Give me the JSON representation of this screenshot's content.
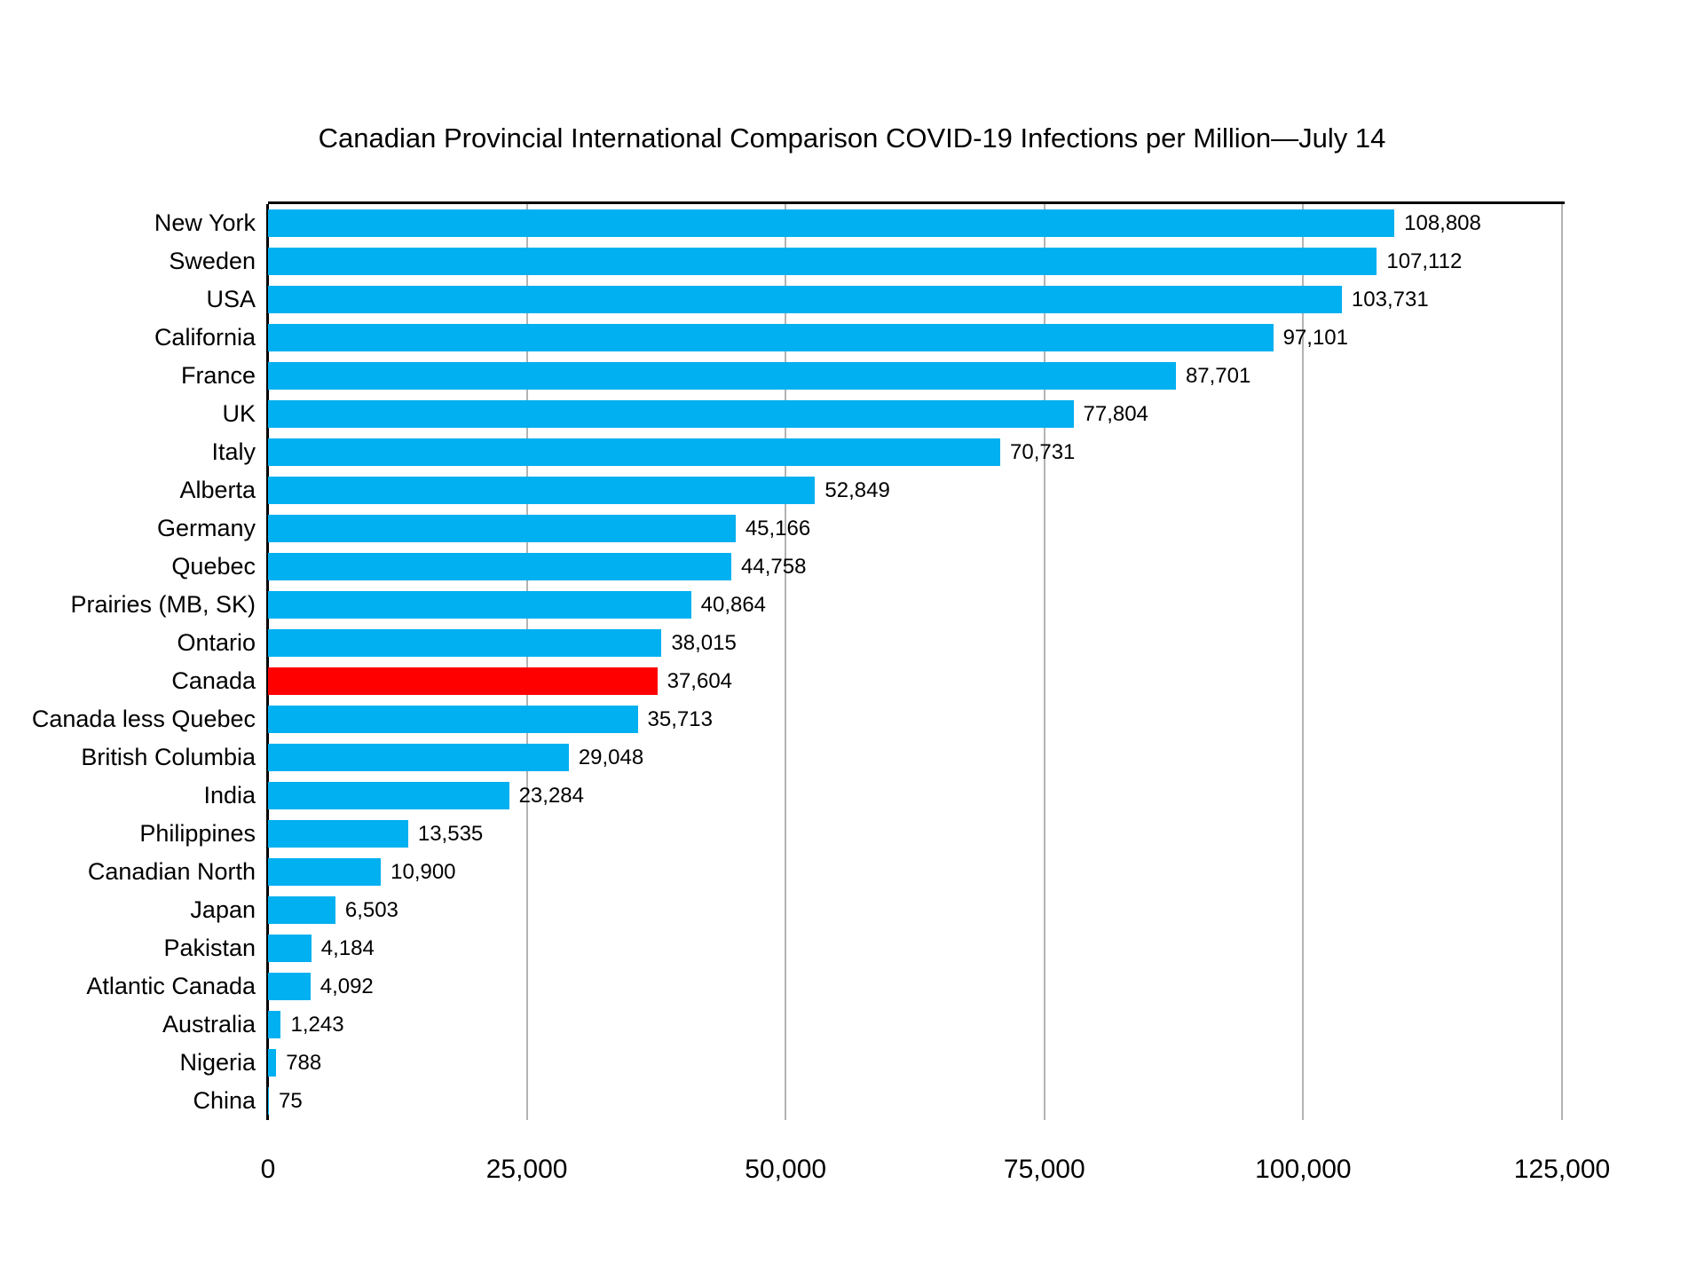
{
  "title": "Canadian Provincial International Comparison COVID-19 Infections per Million—July 14",
  "colors": {
    "bar": "#00b0f0",
    "highlight_bar": "#ff0000",
    "gridline": "#b3b3b3",
    "axis": "#000000",
    "text": "#000000",
    "background": "#ffffff"
  },
  "chart_data": {
    "type": "bar",
    "orientation": "horizontal",
    "title": "Canadian Provincial International Comparison COVID-19 Infections per Million—July 14",
    "xlabel": "",
    "ylabel": "",
    "xlim": [
      0,
      125000
    ],
    "grid": true,
    "legend": false,
    "highlight_category": "Canada",
    "categories": [
      "New York",
      "Sweden",
      "USA",
      "California",
      "France",
      "UK",
      "Italy",
      "Alberta",
      "Germany",
      "Quebec",
      "Prairies (MB, SK)",
      "Ontario",
      "Canada",
      "Canada less Quebec",
      "British Columbia",
      "India",
      "Philippines",
      "Canadian North",
      "Japan",
      "Pakistan",
      "Atlantic Canada",
      "Australia",
      "Nigeria",
      "China"
    ],
    "values": [
      108808,
      107112,
      103731,
      97101,
      87701,
      77804,
      70731,
      52849,
      45166,
      44758,
      40864,
      38015,
      37604,
      35713,
      29048,
      23284,
      13535,
      10900,
      6503,
      4184,
      4092,
      1243,
      788,
      75
    ],
    "value_labels": [
      "108,808",
      "107,112",
      "103,731",
      "97,101",
      "87,701",
      "77,804",
      "70,731",
      "52,849",
      "45,166",
      "44,758",
      "40,864",
      "38,015",
      "37,604",
      "35,713",
      "29,048",
      "23,284",
      "13,535",
      "10,900",
      "6,503",
      "4,184",
      "4,092",
      "1,243",
      "788",
      "75"
    ],
    "x_ticks": [
      0,
      25000,
      50000,
      75000,
      100000,
      125000
    ],
    "x_tick_labels": [
      "0",
      "25,000",
      "50,000",
      "75,000",
      "100,000",
      "125,000"
    ]
  }
}
